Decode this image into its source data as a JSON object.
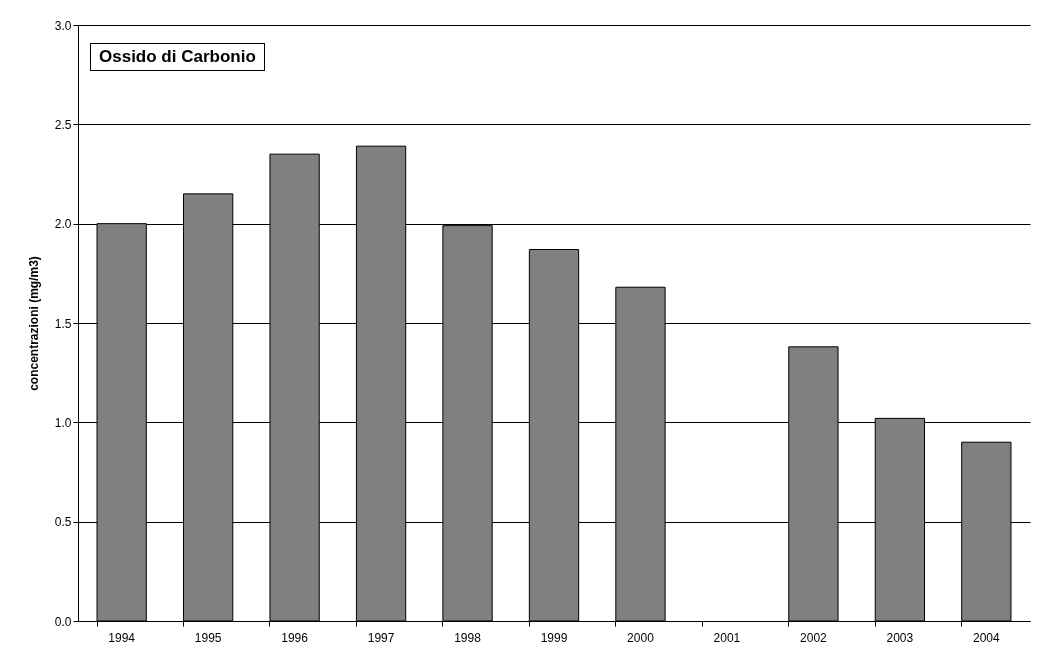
{
  "chart_data": {
    "type": "bar",
    "title": "Ossido di Carbonio",
    "ylabel": "concentrazioni (mg/m3)",
    "categories": [
      "1994",
      "1995",
      "1996",
      "1997",
      "1998",
      "1999",
      "2000",
      "2001",
      "2002",
      "2003",
      "2004"
    ],
    "values": [
      2.0,
      2.15,
      2.35,
      2.39,
      1.99,
      1.87,
      1.68,
      null,
      1.38,
      1.02,
      0.9
    ],
    "color": "#808080",
    "ylim": [
      0,
      3
    ],
    "yticks": [
      {
        "value": 0,
        "label": "0.0"
      },
      {
        "value": 0.5,
        "label": "0.5"
      },
      {
        "value": 1,
        "label": "1.0"
      },
      {
        "value": 1.5,
        "label": "1.5"
      },
      {
        "value": 2,
        "label": "2.0"
      },
      {
        "value": 2.5,
        "label": "2.5"
      },
      {
        "value": 3,
        "label": "3.0"
      }
    ],
    "grid": "y"
  }
}
